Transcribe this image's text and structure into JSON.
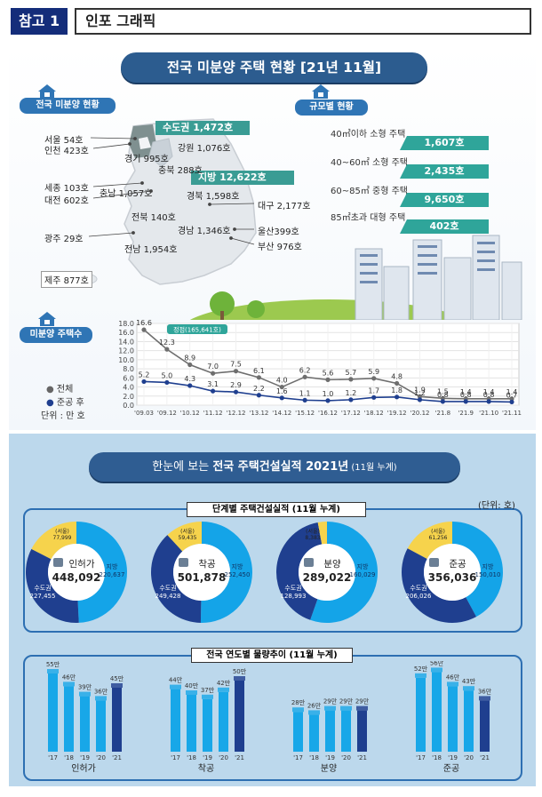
{
  "header": {
    "badge": "참고 1",
    "title": "인포 그래픽"
  },
  "top": {
    "banner": "전국 미분양 주택 현황 [21년 11월]",
    "sec_national": "전국 미분양 현황",
    "sec_scale": "규모별 현황",
    "sec_count": "미분양 주택수",
    "capital": "수도권 1,472호",
    "local": "지방 12,622호",
    "map_labels": {
      "seoul": "서울 54호",
      "incheon": "인천 423호",
      "gyeonggi": "경기 995호",
      "gangwon": "강원 1,076호",
      "chungbuk": "충북 288호",
      "sejong": "세종 103호",
      "daejeon": "대전 602호",
      "chungnam": "충남 1,057호",
      "gyeongbuk": "경북 1,598호",
      "daegu": "대구 2,177호",
      "jeonbuk": "전북 140호",
      "gyeongnam": "경남 1,346호",
      "ulsan": "울산399호",
      "gwangju": "광주 29호",
      "jeonnam": "전남 1,954호",
      "busan": "부산 976호",
      "jeju": "제주 877호"
    },
    "sizes": [
      {
        "label": "40㎡이하 소형 주택",
        "value": "1,607호"
      },
      {
        "label": "40~60㎡ 소형 주택",
        "value": "2,435호"
      },
      {
        "label": "60~85㎡ 중형 주택",
        "value": "9,650호"
      },
      {
        "label": "85㎡초과 대형 주택",
        "value": "402호"
      }
    ]
  },
  "chart_data": {
    "type": "line",
    "title": "미분양 주택수",
    "unit": "단위 : 만 호",
    "peak_label": "정점(165,641호)",
    "legend": [
      "전체",
      "준공 후"
    ],
    "ylim": [
      0,
      18
    ],
    "yticks": [
      "0.0",
      "2.0",
      "4.0",
      "6.0",
      "8.0",
      "10.0",
      "12.0",
      "14.0",
      "16.0",
      "18.0"
    ],
    "categories": [
      "'09.03",
      "'09.12",
      "'10.12",
      "'11.12",
      "'12.12",
      "'13.12",
      "'14.12",
      "'15.12",
      "'16.12",
      "'17.12",
      "'18.12",
      "'19.12",
      "'20.12",
      "'21.8",
      "'21.9",
      "'21.10",
      "'21.11"
    ],
    "series": [
      {
        "name": "전체",
        "values": [
          16.6,
          12.3,
          8.9,
          7.0,
          7.5,
          6.1,
          4.0,
          6.2,
          5.6,
          5.7,
          5.9,
          4.8,
          1.9,
          1.5,
          1.4,
          1.4,
          1.4
        ],
        "labels": [
          "16.6",
          "12.3",
          "8.9",
          "7.0",
          "7.5",
          "6.1",
          "4.0",
          "6.2",
          "5.6",
          "5.7",
          "5.9",
          "4.8",
          "1.9",
          "1.5",
          "1.4",
          "1.4",
          "1.4"
        ]
      },
      {
        "name": "준공 후",
        "values": [
          5.2,
          5.0,
          4.3,
          3.1,
          2.9,
          2.2,
          1.6,
          1.1,
          1.0,
          1.2,
          1.7,
          1.8,
          1.2,
          0.8,
          0.8,
          0.8,
          0.7
        ],
        "labels": [
          "5.2",
          "5.0",
          "4.3",
          "3.1",
          "2.9",
          "2.2",
          "1.6",
          "1.1",
          "1.0",
          "1.2",
          "1.7",
          "1.8",
          "1.2",
          "0.8",
          "0.8",
          "0.8",
          "0.7"
        ]
      }
    ]
  },
  "bottom": {
    "banner_pre": "한눈에 보는 ",
    "banner_main": "전국 주택건설실적 2021년",
    "banner_post": " (11월 누계)",
    "stage_title": "단계별 주택건설실적 (11월 누계)",
    "unit": "(단위: 호)",
    "trend_title": "전국 연도별 물량추이 (11월 누계)"
  },
  "donuts": [
    {
      "name": "인허가",
      "total": "448,092",
      "seoul": 77999,
      "seoul_label": "77,999",
      "capital": 227455,
      "capital_label": "227,455",
      "local": 220637,
      "local_label": "220,637"
    },
    {
      "name": "착공",
      "total": "501,878",
      "seoul": 59435,
      "seoul_label": "59,435",
      "capital": 249428,
      "capital_label": "249,428",
      "local": 252450,
      "local_label": "252,450"
    },
    {
      "name": "분양",
      "total": "289,022",
      "seoul": 8383,
      "seoul_label": "8,383",
      "capital": 128993,
      "capital_label": "128,993",
      "local": 160029,
      "local_label": "160,029"
    },
    {
      "name": "준공",
      "total": "356,036",
      "seoul": 61256,
      "seoul_label": "61,256",
      "capital": 206026,
      "capital_label": "206,026",
      "local": 150010,
      "local_label": "150,010"
    }
  ],
  "donut_labels": {
    "seoul": "(서울)",
    "capital": "수도권",
    "local": "지방"
  },
  "bars": [
    {
      "name": "인허가",
      "years": [
        "'17",
        "'18",
        "'19",
        "'20",
        "'21"
      ],
      "values": [
        55,
        46,
        39,
        36,
        45
      ],
      "labels": [
        "55만",
        "46만",
        "39만",
        "36만",
        "45만"
      ]
    },
    {
      "name": "착공",
      "years": [
        "'17",
        "'18",
        "'19",
        "'20",
        "'21"
      ],
      "values": [
        44,
        40,
        37,
        42,
        50
      ],
      "labels": [
        "44만",
        "40만",
        "37만",
        "42만",
        "50만"
      ]
    },
    {
      "name": "분양",
      "years": [
        "'17",
        "'18",
        "'19",
        "'20",
        "'21"
      ],
      "values": [
        28,
        26,
        29,
        29,
        29
      ],
      "labels": [
        "28만",
        "26만",
        "29만",
        "29만",
        "29만"
      ]
    },
    {
      "name": "준공",
      "years": [
        "'17",
        "'18",
        "'19",
        "'20",
        "'21"
      ],
      "values": [
        52,
        56,
        46,
        43,
        36
      ],
      "labels": [
        "52만",
        "56만",
        "46만",
        "43만",
        "36만"
      ]
    }
  ],
  "colors": {
    "navy": "#1f3f8f",
    "sky": "#14a4e8",
    "yellow": "#f6d34c",
    "teal": "#2fa59a",
    "bar_light": "#18a7e8",
    "bar_dark": "#1f3f8f"
  }
}
